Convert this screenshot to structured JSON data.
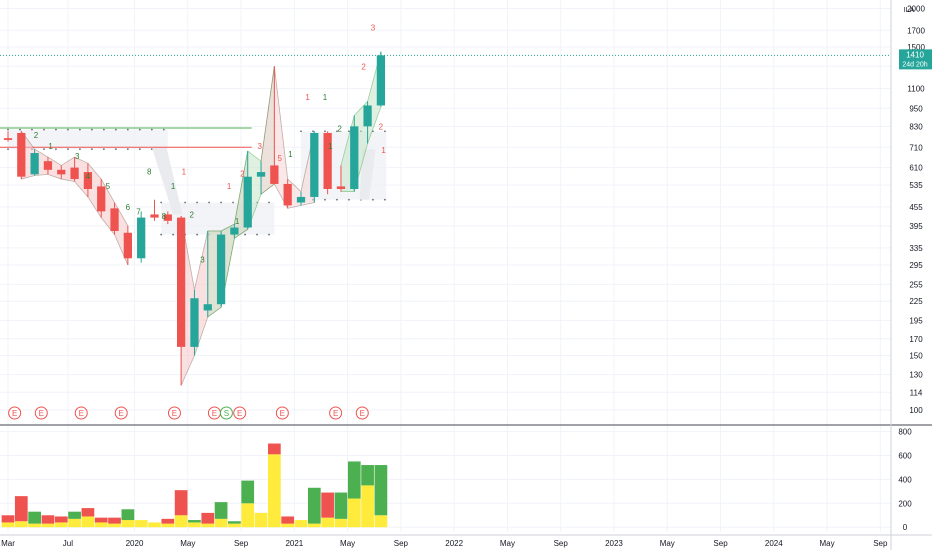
{
  "chart_data": [
    {
      "type": "candlestick",
      "title": "",
      "scale": "log",
      "y_ticks": [
        100,
        114,
        130,
        150,
        170,
        195,
        225,
        255,
        295,
        335,
        395,
        455,
        535,
        610,
        710,
        830,
        950,
        1100,
        1300,
        1500,
        1700,
        2000
      ],
      "y_range": [
        92,
        2100
      ],
      "unit_label": "ILA",
      "price_label": {
        "value": "1410",
        "sub": "24d 20h"
      },
      "x_ticks": [
        {
          "label": "Mar",
          "i": 0
        },
        {
          "label": "Jul",
          "i": 4.5
        },
        {
          "label": "2020",
          "i": 9.5
        },
        {
          "label": "May",
          "i": 13.5
        },
        {
          "label": "Sep",
          "i": 17.5
        },
        {
          "label": "2021",
          "i": 21.5
        },
        {
          "label": "May",
          "i": 25.5
        },
        {
          "label": "Sep",
          "i": 29.5
        },
        {
          "label": "2022",
          "i": 33.5
        },
        {
          "label": "May",
          "i": 37.5
        },
        {
          "label": "Sep",
          "i": 41.5
        },
        {
          "label": "2023",
          "i": 45.5
        },
        {
          "label": "May",
          "i": 49.5
        },
        {
          "label": "Sep",
          "i": 53.5
        },
        {
          "label": "2024",
          "i": 57.5
        },
        {
          "label": "May",
          "i": 61.5
        },
        {
          "label": "Sep",
          "i": 65.5
        }
      ],
      "x_index_range": [
        -0.6,
        66.3
      ],
      "candles": [
        {
          "o": 760,
          "h": 800,
          "l": 740,
          "c": 750
        },
        {
          "o": 790,
          "h": 800,
          "l": 560,
          "c": 570
        },
        {
          "o": 580,
          "h": 700,
          "l": 575,
          "c": 680
        },
        {
          "o": 640,
          "h": 660,
          "l": 580,
          "c": 600
        },
        {
          "o": 600,
          "h": 620,
          "l": 560,
          "c": 580
        },
        {
          "o": 610,
          "h": 660,
          "l": 550,
          "c": 560
        },
        {
          "o": 590,
          "h": 630,
          "l": 490,
          "c": 520
        },
        {
          "o": 530,
          "h": 560,
          "l": 420,
          "c": 440
        },
        {
          "o": 450,
          "h": 470,
          "l": 370,
          "c": 380
        },
        {
          "o": 375,
          "h": 395,
          "l": 295,
          "c": 310
        },
        {
          "o": 310,
          "h": 440,
          "l": 300,
          "c": 420
        },
        {
          "o": 430,
          "h": 480,
          "l": 410,
          "c": 420
        },
        {
          "o": 430,
          "h": 440,
          "l": 400,
          "c": 410
        },
        {
          "o": 420,
          "h": 425,
          "l": 120,
          "c": 160
        },
        {
          "o": 160,
          "h": 245,
          "l": 150,
          "c": 230
        },
        {
          "o": 210,
          "h": 380,
          "l": 200,
          "c": 220
        },
        {
          "o": 220,
          "h": 380,
          "l": 215,
          "c": 370
        },
        {
          "o": 370,
          "h": 400,
          "l": 360,
          "c": 390
        },
        {
          "o": 390,
          "h": 690,
          "l": 385,
          "c": 570
        },
        {
          "o": 570,
          "h": 640,
          "l": 500,
          "c": 590
        },
        {
          "o": 620,
          "h": 1300,
          "l": 540,
          "c": 540
        },
        {
          "o": 540,
          "h": 560,
          "l": 450,
          "c": 460
        },
        {
          "o": 470,
          "h": 510,
          "l": 460,
          "c": 490
        },
        {
          "o": 490,
          "h": 800,
          "l": 470,
          "c": 790
        },
        {
          "o": 790,
          "h": 800,
          "l": 500,
          "c": 520
        },
        {
          "o": 530,
          "h": 620,
          "l": 510,
          "c": 520
        },
        {
          "o": 520,
          "h": 900,
          "l": 510,
          "c": 830
        },
        {
          "o": 830,
          "h": 1000,
          "l": 730,
          "c": 970
        },
        {
          "o": 970,
          "h": 1450,
          "l": 960,
          "c": 1410
        }
      ],
      "colors": {
        "up": "#26a69a",
        "down": "#ef5350"
      }
    },
    {
      "type": "bar",
      "title": "",
      "y_ticks": [
        0,
        200,
        400,
        600,
        800
      ],
      "y_range": [
        -40,
        830
      ],
      "stacked": true,
      "series": [
        {
          "color": "#ffeb3b",
          "values": [
            40,
            50,
            30,
            30,
            40,
            70,
            90,
            40,
            30,
            60,
            60,
            40,
            30,
            100,
            40,
            30,
            70,
            30,
            200,
            120,
            610,
            30,
            60,
            30,
            80,
            70,
            240,
            350,
            100
          ]
        },
        {
          "color": "#ef5350",
          "values": [
            60,
            210,
            0,
            70,
            50,
            0,
            70,
            40,
            50,
            0,
            0,
            0,
            40,
            210,
            0,
            90,
            0,
            0,
            0,
            0,
            90,
            60,
            0,
            0,
            210,
            0,
            0,
            0,
            0
          ]
        },
        {
          "color": "#4caf50",
          "values": [
            0,
            0,
            100,
            0,
            0,
            60,
            0,
            0,
            0,
            90,
            0,
            0,
            0,
            0,
            20,
            0,
            140,
            20,
            190,
            0,
            0,
            0,
            0,
            300,
            0,
            220,
            310,
            170,
            420
          ]
        }
      ]
    }
  ],
  "counts": [
    {
      "t": "1",
      "i": 3.2,
      "v": 700,
      "c": "#2e7d32"
    },
    {
      "t": "2",
      "i": 2.1,
      "v": 760,
      "c": "#2e7d32"
    },
    {
      "t": "3",
      "i": 5.2,
      "v": 650,
      "c": "#2e7d32"
    },
    {
      "t": "4",
      "i": 6.0,
      "v": 560,
      "c": "#2e7d32"
    },
    {
      "t": "5",
      "i": 7.5,
      "v": 520,
      "c": "#2e7d32"
    },
    {
      "t": "6",
      "i": 9.0,
      "v": 445,
      "c": "#2e7d32"
    },
    {
      "t": "8",
      "i": 10.6,
      "v": 580,
      "c": "#2e7d32"
    },
    {
      "t": "7",
      "i": 9.8,
      "v": 430,
      "c": "#2e7d32"
    },
    {
      "t": "8",
      "i": 11.7,
      "v": 415,
      "c": "#2e7d32"
    },
    {
      "t": "1",
      "i": 12.4,
      "v": 520,
      "c": "#2e7d32"
    },
    {
      "t": "1",
      "i": 13.2,
      "v": 580,
      "c": "#ef5350"
    },
    {
      "t": "2",
      "i": 13.8,
      "v": 420,
      "c": "#2e7d32"
    },
    {
      "t": "3",
      "i": 14.6,
      "v": 300,
      "c": "#2e7d32"
    },
    {
      "t": "1",
      "i": 16.6,
      "v": 520,
      "c": "#ef5350"
    },
    {
      "t": "2",
      "i": 17.6,
      "v": 570,
      "c": "#ef5350"
    },
    {
      "t": "3",
      "i": 18.9,
      "v": 700,
      "c": "#ef5350"
    },
    {
      "t": "1",
      "i": 17.2,
      "v": 400,
      "c": "#2e7d32"
    },
    {
      "t": "5",
      "i": 20.4,
      "v": 640,
      "c": "#ef5350"
    },
    {
      "t": "1",
      "i": 21.2,
      "v": 660,
      "c": "#2e7d32"
    },
    {
      "t": "1",
      "i": 22.5,
      "v": 1010,
      "c": "#ef5350"
    },
    {
      "t": "1",
      "i": 23.8,
      "v": 1010,
      "c": "#2e7d32"
    },
    {
      "t": "1",
      "i": 24.2,
      "v": 700,
      "c": "#2e7d32"
    },
    {
      "t": "2",
      "i": 24.9,
      "v": 800,
      "c": "#2e7d32"
    },
    {
      "t": "2",
      "i": 26.7,
      "v": 1270,
      "c": "#ef5350"
    },
    {
      "t": "3",
      "i": 27.4,
      "v": 1700,
      "c": "#ef5350"
    },
    {
      "t": "2",
      "i": 28.0,
      "v": 810,
      "c": "#ef5350"
    },
    {
      "t": "1",
      "i": 28.2,
      "v": 680,
      "c": "#ef5350"
    }
  ],
  "events": [
    {
      "t": "E",
      "i": 0.5,
      "c": "#ef5350"
    },
    {
      "t": "E",
      "i": 2.5,
      "c": "#ef5350"
    },
    {
      "t": "E",
      "i": 5.5,
      "c": "#ef5350"
    },
    {
      "t": "E",
      "i": 8.5,
      "c": "#ef5350"
    },
    {
      "t": "E",
      "i": 12.5,
      "c": "#ef5350"
    },
    {
      "t": "E",
      "i": 15.5,
      "c": "#ef5350"
    },
    {
      "t": "S",
      "i": 16.4,
      "c": "#4caf50"
    },
    {
      "t": "E",
      "i": 17.4,
      "c": "#ef5350"
    },
    {
      "t": "E",
      "i": 20.6,
      "c": "#ef5350"
    },
    {
      "t": "E",
      "i": 24.6,
      "c": "#ef5350"
    },
    {
      "t": "E",
      "i": 26.6,
      "c": "#ef5350"
    }
  ]
}
